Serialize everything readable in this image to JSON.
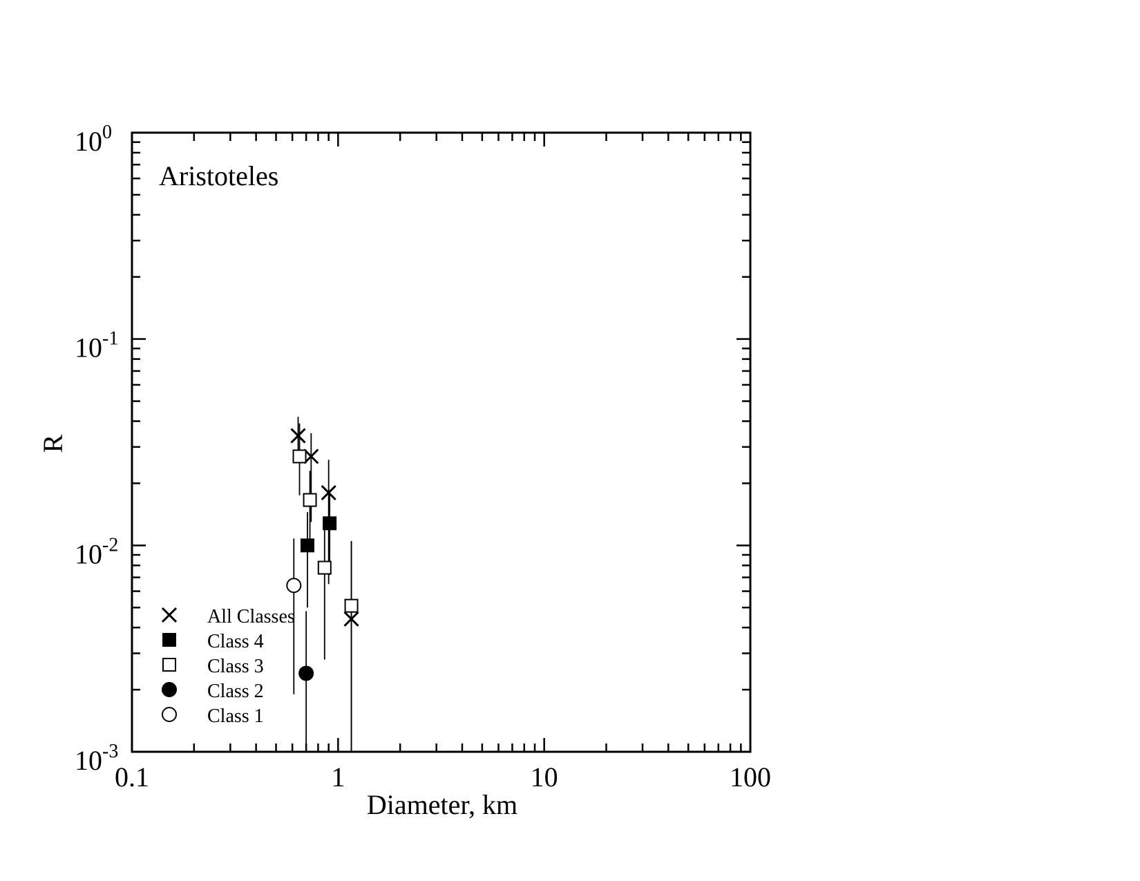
{
  "chart_data": {
    "type": "scatter",
    "annotation": "Aristoteles",
    "xlabel": "Diameter, km",
    "ylabel": "R",
    "x_scale": "log",
    "y_scale": "log",
    "xlim": [
      0.1,
      100
    ],
    "ylim": [
      0.001,
      1
    ],
    "x_tick_labels": [
      "0.1",
      "1",
      "10",
      "100"
    ],
    "y_tick_labels": [
      {
        "base": "10",
        "exp": "0"
      },
      {
        "base": "10",
        "exp": "-1"
      },
      {
        "base": "10",
        "exp": "-2"
      },
      {
        "base": "10",
        "exp": "-3"
      }
    ],
    "grid": false,
    "legend_position": "bottom-left",
    "series": [
      {
        "name": "All Classes",
        "marker": "x",
        "points": [
          {
            "x": 0.64,
            "y": 0.034,
            "ylo": 0.026,
            "yhi": 0.042
          },
          {
            "x": 0.74,
            "y": 0.027,
            "ylo": 0.013,
            "yhi": 0.035
          },
          {
            "x": 0.9,
            "y": 0.018,
            "ylo": 0.0065,
            "yhi": 0.026
          },
          {
            "x": 1.16,
            "y": 0.0044,
            "ylo": 0.001,
            "yhi": 0.0105
          }
        ]
      },
      {
        "name": "Class 4",
        "marker": "filled-square",
        "points": [
          {
            "x": 0.71,
            "y": 0.01,
            "ylo": 0.005,
            "yhi": 0.0145
          },
          {
            "x": 0.91,
            "y": 0.0128,
            "ylo": 0.0072,
            "yhi": 0.0185
          }
        ]
      },
      {
        "name": "Class 3",
        "marker": "open-square",
        "points": [
          {
            "x": 0.65,
            "y": 0.027,
            "ylo": 0.0175,
            "yhi": 0.039
          },
          {
            "x": 0.73,
            "y": 0.0166,
            "ylo": 0.0095,
            "yhi": 0.023
          },
          {
            "x": 0.86,
            "y": 0.0078,
            "ylo": 0.0028,
            "yhi": 0.0128
          },
          {
            "x": 1.16,
            "y": 0.0051,
            "ylo": 0.001,
            "yhi": 0.0105
          }
        ]
      },
      {
        "name": "Class 2",
        "marker": "filled-circle",
        "points": [
          {
            "x": 0.7,
            "y": 0.0024,
            "ylo": 0.001,
            "yhi": 0.0048
          }
        ]
      },
      {
        "name": "Class 1",
        "marker": "open-circle",
        "points": [
          {
            "x": 0.61,
            "y": 0.0064,
            "ylo": 0.0019,
            "yhi": 0.0108
          }
        ]
      }
    ]
  }
}
